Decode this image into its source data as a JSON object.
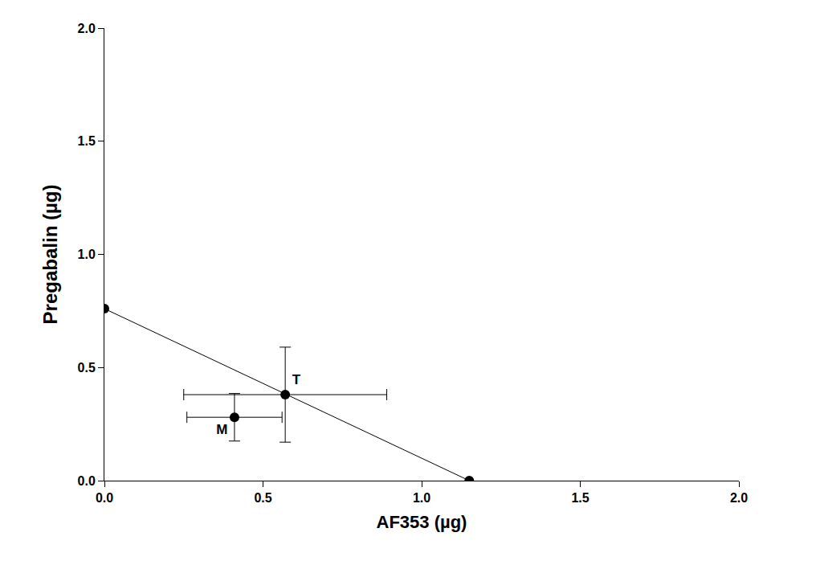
{
  "chart_data": {
    "type": "scatter",
    "xlabel": "AF353 (µg)",
    "ylabel": "Pregabalin (µg)",
    "xlim": [
      0,
      2
    ],
    "ylim": [
      0,
      2
    ],
    "xticks": [
      {
        "value": 0,
        "label": "0.0"
      },
      {
        "value": 0.5,
        "label": "0.5"
      },
      {
        "value": 1,
        "label": "1.0"
      },
      {
        "value": 1.5,
        "label": "1.5"
      },
      {
        "value": 2,
        "label": "2.0"
      }
    ],
    "yticks": [
      {
        "value": 0,
        "label": "0.0"
      },
      {
        "value": 0.5,
        "label": "0.5"
      },
      {
        "value": 1,
        "label": "1.0"
      },
      {
        "value": 1.5,
        "label": "1.5"
      },
      {
        "value": 2,
        "label": "2.0"
      }
    ],
    "grid": false,
    "color": "#000000",
    "series": [
      {
        "x": [
          0,
          1.15
        ],
        "values": [
          0.76,
          0
        ],
        "line_style": "solid",
        "marker": "circle"
      },
      {
        "x": [
          0.57
        ],
        "values": [
          0.38
        ],
        "labels": [
          "T"
        ],
        "x_error": [
          0.32
        ],
        "y_error": [
          0.21
        ],
        "line_style": "none",
        "marker": "circle"
      },
      {
        "x": [
          0.41
        ],
        "values": [
          0.28
        ],
        "labels": [
          "M"
        ],
        "x_error": [
          0.15
        ],
        "y_error": [
          0.105
        ],
        "line_style": "none",
        "marker": "circle"
      }
    ]
  }
}
